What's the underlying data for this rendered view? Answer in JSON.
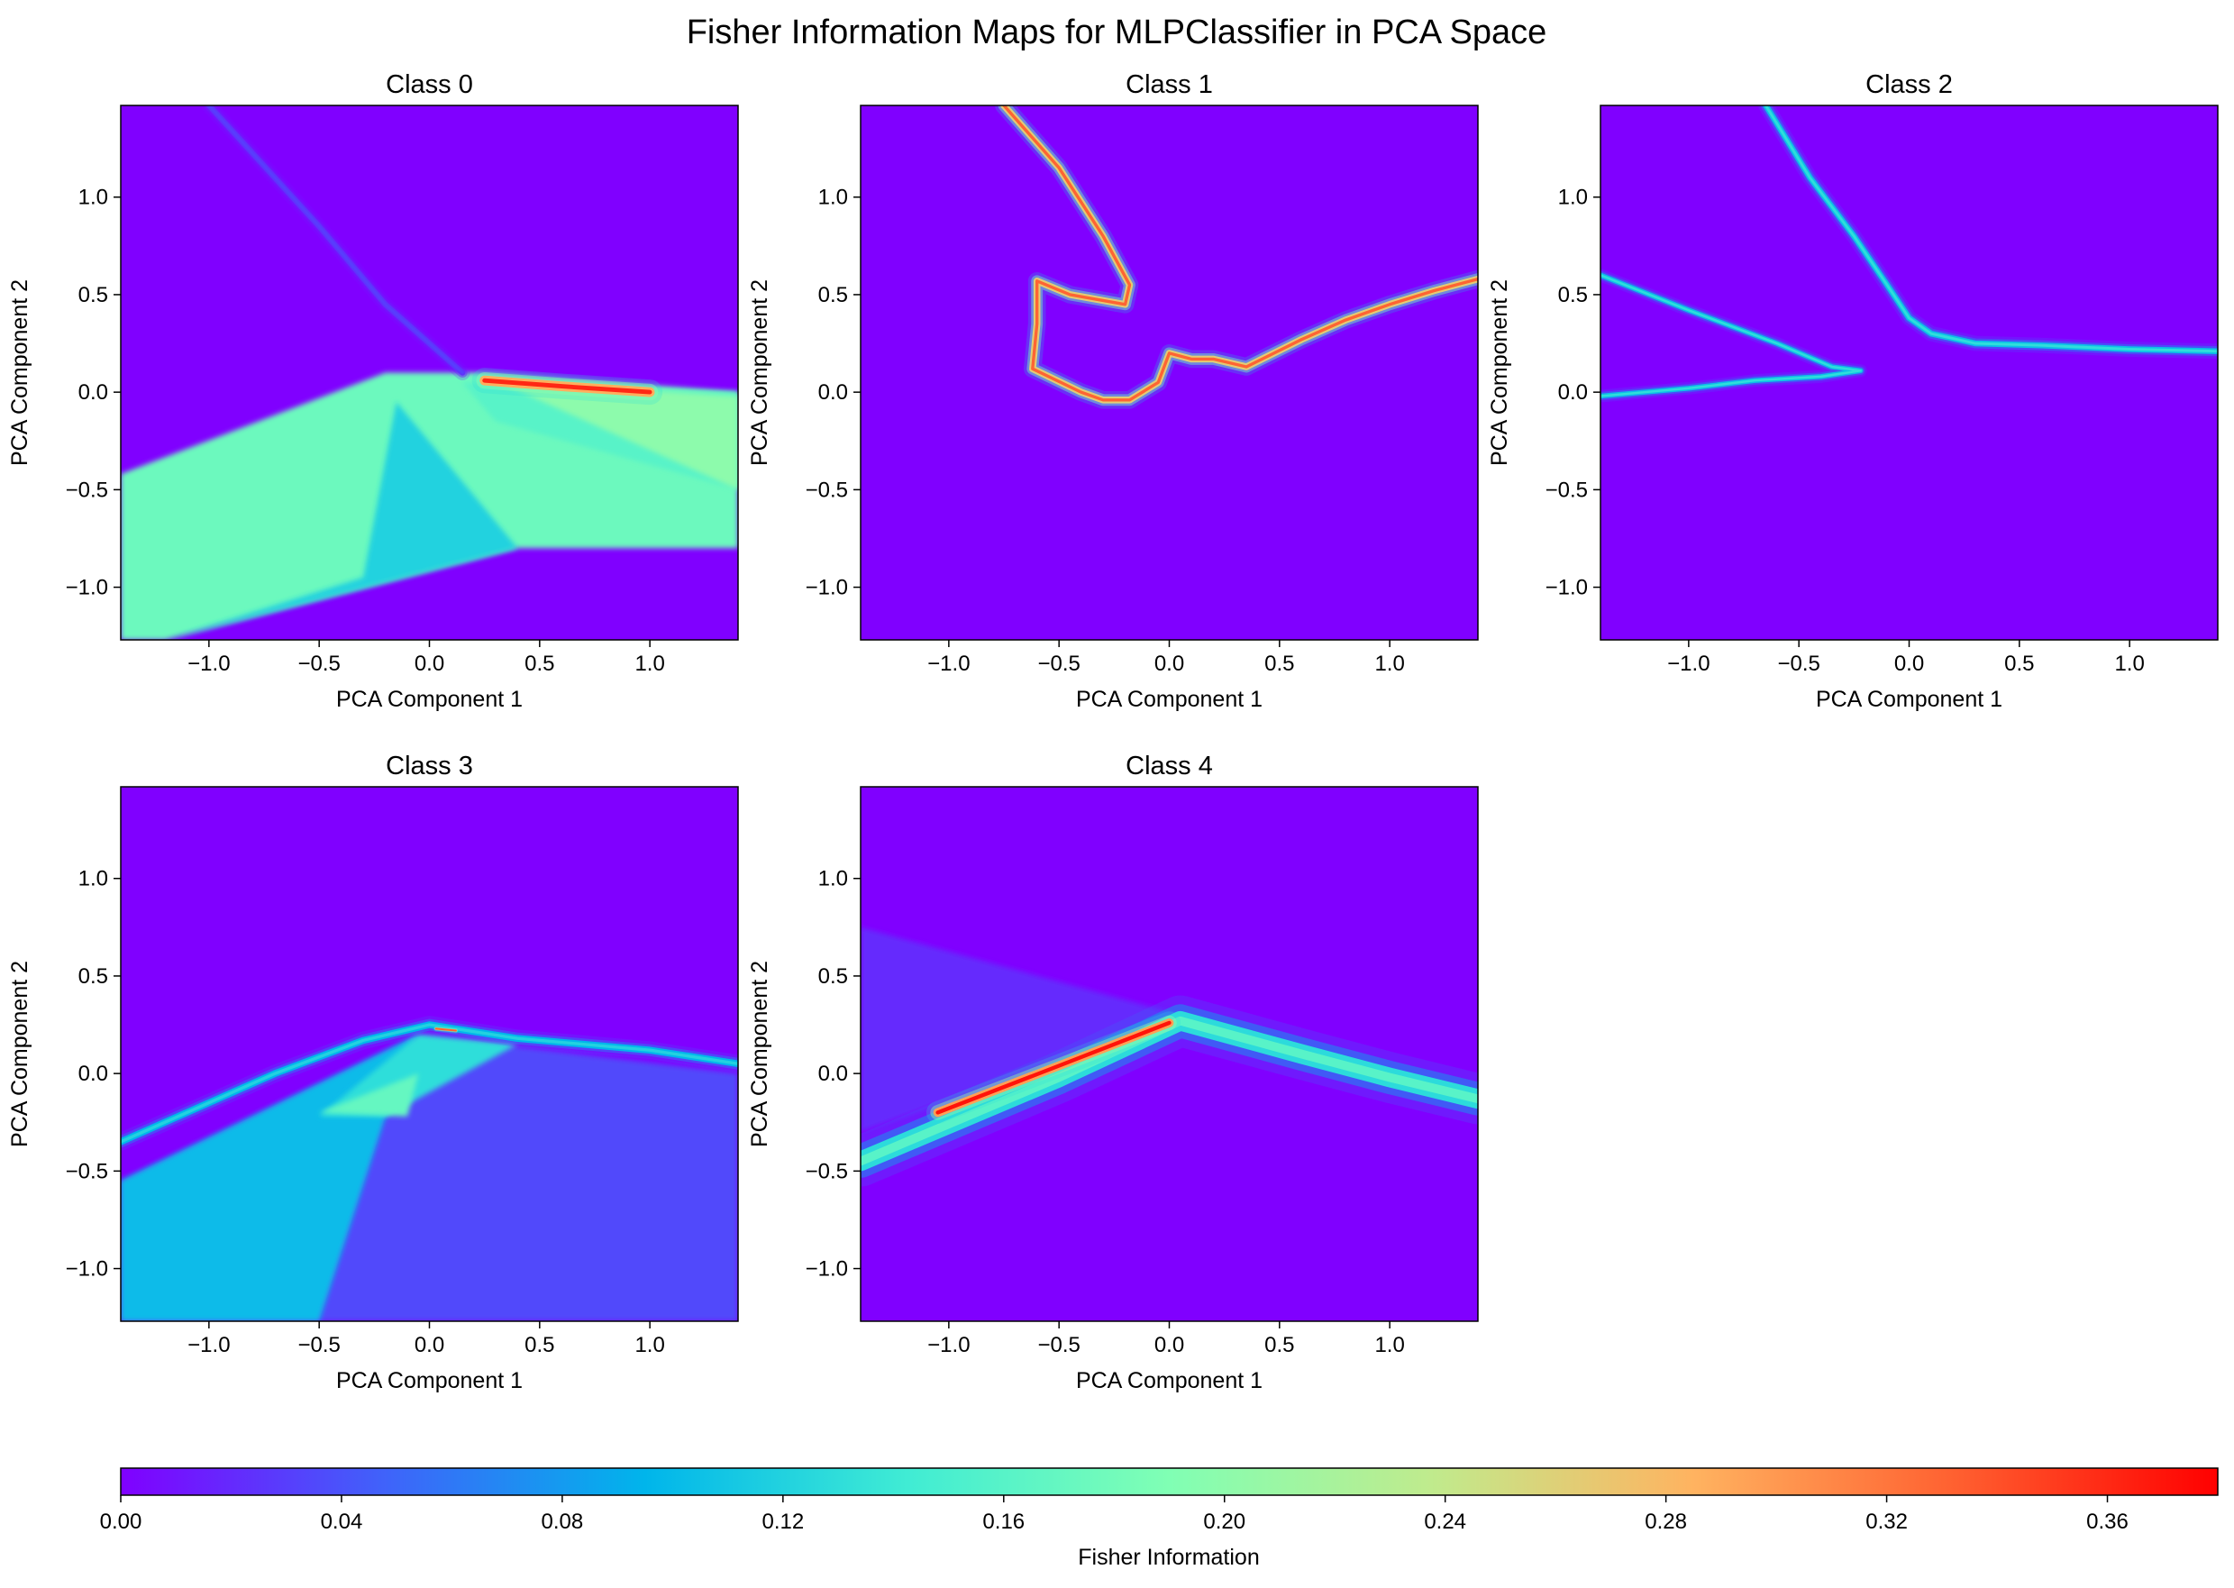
{
  "title": "Fisher Information Maps for MLPClassifier in PCA Space",
  "colors": {
    "colormap": "rainbow",
    "colormap_stops": [
      "#8000ff",
      "#4062fa",
      "#00b5eb",
      "#40ecd4",
      "#80ffb4",
      "#c0eb8d",
      "#ffb360",
      "#ff6030",
      "#ff0000"
    ],
    "background": "#8000ff"
  },
  "chart_data": [
    {
      "type": "heatmap",
      "title": "Class 0",
      "xlabel": "PCA Component 1",
      "ylabel": "PCA Component 2",
      "xlim": [
        -1.4,
        1.4
      ],
      "ylim": [
        -1.27,
        1.47
      ],
      "xticks": [
        "−1.0",
        "−0.5",
        "0.0",
        "0.5",
        "1.0"
      ],
      "xtick_values": [
        -1.0,
        -0.5,
        0.0,
        0.5,
        1.0
      ],
      "yticks": [
        "−1.0",
        "−0.5",
        "0.0",
        "0.5",
        "1.0"
      ],
      "ytick_values": [
        -1.0,
        -0.5,
        0.0,
        0.5,
        1.0
      ],
      "regions": [
        {
          "value": 0.175,
          "points": [
            [
              -1.4,
              -0.42
            ],
            [
              -0.2,
              0.1
            ],
            [
              0.25,
              0.1
            ],
            [
              1.4,
              0.0
            ],
            [
              1.4,
              -0.8
            ],
            [
              0.4,
              -0.8
            ],
            [
              -1.2,
              -1.27
            ],
            [
              -1.4,
              -1.27
            ]
          ]
        },
        {
          "value": 0.12,
          "points": [
            [
              -0.15,
              -0.05
            ],
            [
              0.4,
              -0.8
            ],
            [
              -1.2,
              -1.27
            ],
            [
              -0.3,
              -0.95
            ]
          ]
        },
        {
          "value": 0.16,
          "points": [
            [
              0.15,
              0.05
            ],
            [
              1.4,
              0.0
            ],
            [
              1.4,
              -0.5
            ],
            [
              0.3,
              -0.15
            ]
          ]
        },
        {
          "value": 0.2,
          "points": [
            [
              0.3,
              0.06
            ],
            [
              1.4,
              -0.02
            ],
            [
              1.4,
              -0.5
            ]
          ]
        }
      ],
      "ridges": [
        {
          "value": 0.36,
          "width": 0.05,
          "points": [
            [
              0.25,
              0.06
            ],
            [
              0.6,
              0.03
            ],
            [
              1.0,
              0.0
            ]
          ]
        },
        {
          "value": 0.03,
          "width": 0.03,
          "points": [
            [
              -1.0,
              1.47
            ],
            [
              -0.5,
              0.85
            ],
            [
              -0.2,
              0.45
            ],
            [
              0.15,
              0.1
            ]
          ]
        }
      ]
    },
    {
      "type": "heatmap",
      "title": "Class 1",
      "xlabel": "PCA Component 1",
      "ylabel": "PCA Component 2",
      "xlim": [
        -1.4,
        1.4
      ],
      "ylim": [
        -1.27,
        1.47
      ],
      "xticks": [
        "−1.0",
        "−0.5",
        "0.0",
        "0.5",
        "1.0"
      ],
      "xtick_values": [
        -1.0,
        -0.5,
        0.0,
        0.5,
        1.0
      ],
      "yticks": [
        "−1.0",
        "−0.5",
        "0.0",
        "0.5",
        "1.0"
      ],
      "ytick_values": [
        -1.0,
        -0.5,
        0.0,
        0.5,
        1.0
      ],
      "regions": [],
      "ridges": [
        {
          "value": 0.33,
          "width": 0.035,
          "points": [
            [
              -0.75,
              1.47
            ],
            [
              -0.5,
              1.15
            ],
            [
              -0.3,
              0.8
            ],
            [
              -0.18,
              0.55
            ],
            [
              -0.2,
              0.45
            ],
            [
              -0.45,
              0.5
            ],
            [
              -0.6,
              0.57
            ],
            [
              -0.6,
              0.35
            ],
            [
              -0.62,
              0.12
            ],
            [
              -0.4,
              0.0
            ],
            [
              -0.3,
              -0.04
            ],
            [
              -0.18,
              -0.04
            ],
            [
              -0.05,
              0.05
            ],
            [
              0.0,
              0.2
            ],
            [
              0.1,
              0.17
            ],
            [
              0.2,
              0.17
            ],
            [
              0.35,
              0.13
            ],
            [
              0.6,
              0.27
            ],
            [
              0.8,
              0.37
            ],
            [
              1.0,
              0.45
            ],
            [
              1.2,
              0.52
            ],
            [
              1.4,
              0.58
            ]
          ]
        }
      ]
    },
    {
      "type": "heatmap",
      "title": "Class 2",
      "xlabel": "PCA Component 1",
      "ylabel": "PCA Component 2",
      "xlim": [
        -1.4,
        1.4
      ],
      "ylim": [
        -1.27,
        1.47
      ],
      "xticks": [
        "−1.0",
        "−0.5",
        "0.0",
        "0.5",
        "1.0"
      ],
      "xtick_values": [
        -1.0,
        -0.5,
        0.0,
        0.5,
        1.0
      ],
      "yticks": [
        "−1.0",
        "−0.5",
        "0.0",
        "0.5",
        "1.0"
      ],
      "ytick_values": [
        -1.0,
        -0.5,
        0.0,
        0.5,
        1.0
      ],
      "regions": [],
      "ridges": [
        {
          "value": 0.13,
          "width": 0.03,
          "points": [
            [
              -0.65,
              1.47
            ],
            [
              -0.45,
              1.1
            ],
            [
              -0.25,
              0.8
            ],
            [
              -0.1,
              0.55
            ],
            [
              0.0,
              0.38
            ],
            [
              0.1,
              0.3
            ],
            [
              0.3,
              0.25
            ],
            [
              0.6,
              0.24
            ],
            [
              1.0,
              0.22
            ],
            [
              1.4,
              0.21
            ]
          ]
        },
        {
          "value": 0.13,
          "width": 0.025,
          "points": [
            [
              -1.4,
              0.6
            ],
            [
              -1.0,
              0.42
            ],
            [
              -0.6,
              0.25
            ],
            [
              -0.35,
              0.13
            ],
            [
              -0.22,
              0.11
            ],
            [
              -0.4,
              0.08
            ],
            [
              -0.7,
              0.06
            ],
            [
              -1.0,
              0.02
            ],
            [
              -1.4,
              -0.02
            ]
          ]
        }
      ]
    },
    {
      "type": "heatmap",
      "title": "Class 3",
      "xlabel": "PCA Component 1",
      "ylabel": "PCA Component 2",
      "xlim": [
        -1.4,
        1.4
      ],
      "ylim": [
        -1.27,
        1.47
      ],
      "xticks": [
        "−1.0",
        "−0.5",
        "0.0",
        "0.5",
        "1.0"
      ],
      "xtick_values": [
        -1.0,
        -0.5,
        0.0,
        0.5,
        1.0
      ],
      "yticks": [
        "−1.0",
        "−0.5",
        "0.0",
        "0.5",
        "1.0"
      ],
      "ytick_values": [
        -1.0,
        -0.5,
        0.0,
        0.5,
        1.0
      ],
      "regions": [
        {
          "value": 0.035,
          "points": [
            [
              -1.4,
              -0.55
            ],
            [
              -0.05,
              0.2
            ],
            [
              1.4,
              0.0
            ],
            [
              1.4,
              -1.27
            ],
            [
              -1.4,
              -1.27
            ]
          ]
        },
        {
          "value": 0.1,
          "points": [
            [
              -1.4,
              -0.55
            ],
            [
              -0.05,
              0.2
            ],
            [
              -0.15,
              -0.05
            ],
            [
              -0.5,
              -1.27
            ],
            [
              -1.4,
              -1.27
            ]
          ]
        },
        {
          "value": 0.13,
          "points": [
            [
              -0.05,
              0.2
            ],
            [
              0.4,
              0.15
            ],
            [
              -0.2,
              -0.22
            ],
            [
              -0.5,
              -0.22
            ]
          ]
        },
        {
          "value": 0.17,
          "points": [
            [
              -0.5,
              -0.2
            ],
            [
              -0.05,
              0.0
            ],
            [
              -0.1,
              -0.22
            ]
          ]
        }
      ],
      "ridges": [
        {
          "value": 0.12,
          "width": 0.035,
          "points": [
            [
              -1.4,
              -0.35
            ],
            [
              -0.7,
              0.0
            ],
            [
              -0.3,
              0.17
            ],
            [
              0.0,
              0.25
            ],
            [
              0.4,
              0.18
            ],
            [
              1.0,
              0.12
            ],
            [
              1.4,
              0.05
            ]
          ]
        },
        {
          "value": 0.33,
          "width": 0.012,
          "points": [
            [
              0.03,
              0.23
            ],
            [
              0.12,
              0.22
            ]
          ]
        }
      ]
    },
    {
      "type": "heatmap",
      "title": "Class 4",
      "xlabel": "PCA Component 1",
      "ylabel": "PCA Component 2",
      "xlim": [
        -1.4,
        1.4
      ],
      "ylim": [
        -1.27,
        1.47
      ],
      "xticks": [
        "−1.0",
        "−0.5",
        "0.0",
        "0.5",
        "1.0"
      ],
      "xtick_values": [
        -1.0,
        -0.5,
        0.0,
        0.5,
        1.0
      ],
      "yticks": [
        "−1.0",
        "−0.5",
        "0.0",
        "0.5",
        "1.0"
      ],
      "ytick_values": [
        -1.0,
        -0.5,
        0.0,
        0.5,
        1.0
      ],
      "regions": [
        {
          "value": 0.02,
          "points": [
            [
              -1.4,
              0.75
            ],
            [
              0.05,
              0.3
            ],
            [
              -1.4,
              -0.3
            ]
          ]
        }
      ],
      "ridges": [
        {
          "value": 0.16,
          "width": 0.1,
          "points": [
            [
              -1.4,
              -0.45
            ],
            [
              -0.5,
              -0.02
            ],
            [
              0.05,
              0.27
            ],
            [
              0.6,
              0.1
            ],
            [
              1.0,
              -0.02
            ],
            [
              1.4,
              -0.13
            ]
          ]
        },
        {
          "value": 0.37,
          "width": 0.045,
          "points": [
            [
              -1.05,
              -0.2
            ],
            [
              -0.5,
              0.04
            ],
            [
              0.0,
              0.26
            ]
          ]
        }
      ]
    }
  ],
  "colorbar": {
    "label": "Fisher Information",
    "range": [
      0.0,
      0.38
    ],
    "ticks": [
      "0.00",
      "0.04",
      "0.08",
      "0.12",
      "0.16",
      "0.20",
      "0.24",
      "0.28",
      "0.32",
      "0.36"
    ],
    "tick_values": [
      0.0,
      0.04,
      0.08,
      0.12,
      0.16,
      0.2,
      0.24,
      0.28,
      0.32,
      0.36
    ]
  }
}
